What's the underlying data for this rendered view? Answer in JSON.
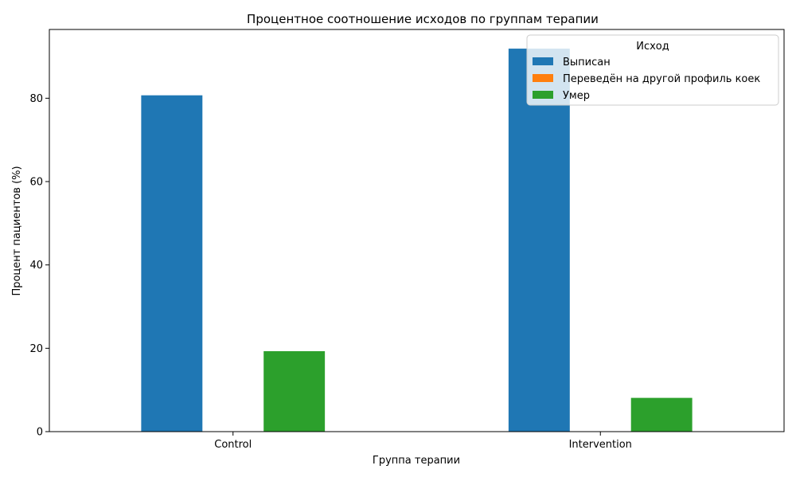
{
  "chart_data": {
    "type": "bar",
    "title": "Процентное соотношение исходов по группам терапии",
    "xlabel": "Группа терапии",
    "ylabel": "Процент пациентов (%)",
    "categories": [
      "Control",
      "Intervention"
    ],
    "series": [
      {
        "name": "Выписан",
        "values": [
          80.7,
          91.9
        ],
        "color": "#1f77b4"
      },
      {
        "name": "Переведён на другой профиль коек",
        "values": [
          0,
          0
        ],
        "color": "#ff7f0e"
      },
      {
        "name": "Умер",
        "values": [
          19.3,
          8.1
        ],
        "color": "#2ca02c"
      }
    ],
    "ylim": [
      0,
      96.5
    ],
    "yticks": [
      0,
      20,
      40,
      60,
      80
    ],
    "legend": {
      "title": "Исход",
      "position": "top-right"
    },
    "grid": false
  }
}
